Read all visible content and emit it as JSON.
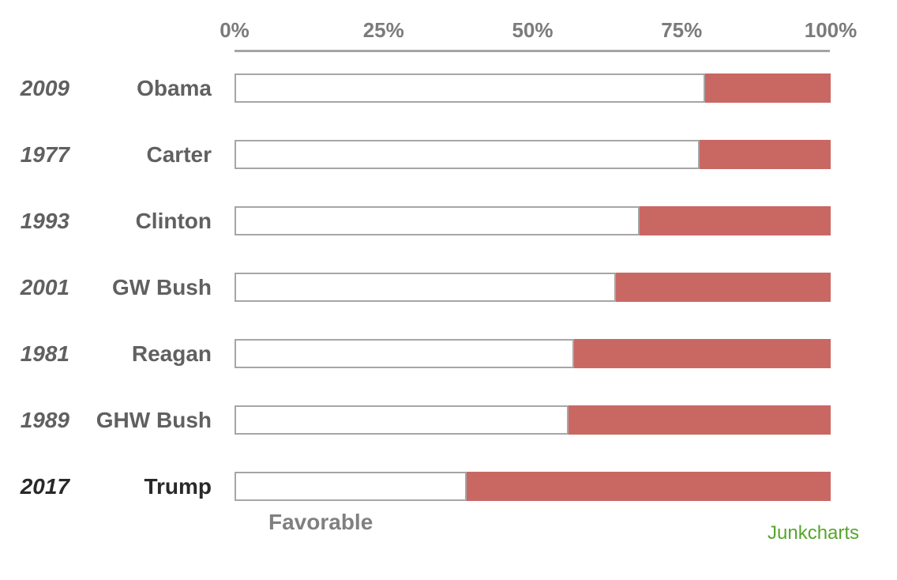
{
  "chart_data": {
    "type": "bar",
    "orientation": "horizontal",
    "title": "",
    "xlabel": "",
    "ylabel": "",
    "x_ticks": [
      "0%",
      "25%",
      "50%",
      "75%",
      "100%"
    ],
    "x_range": [
      0,
      100
    ],
    "series_label": "Favorable",
    "rows": [
      {
        "year": "2009",
        "president": "Obama",
        "favorable": 79,
        "remainder": 21,
        "highlighted": false
      },
      {
        "year": "1977",
        "president": "Carter",
        "favorable": 78,
        "remainder": 22,
        "highlighted": false
      },
      {
        "year": "1993",
        "president": "Clinton",
        "favorable": 68,
        "remainder": 32,
        "highlighted": false
      },
      {
        "year": "2001",
        "president": "GW Bush",
        "favorable": 64,
        "remainder": 36,
        "highlighted": false
      },
      {
        "year": "1981",
        "president": "Reagan",
        "favorable": 57,
        "remainder": 43,
        "highlighted": false
      },
      {
        "year": "1989",
        "president": "GHW Bush",
        "favorable": 56,
        "remainder": 44,
        "highlighted": false
      },
      {
        "year": "2017",
        "president": "Trump",
        "favorable": 39,
        "remainder": 61,
        "highlighted": true
      }
    ],
    "legend": [],
    "grid": false,
    "colors": {
      "favorable_fill": "#ffffff",
      "remainder_fill": "#c96863",
      "bar_border": "#a6a6a6",
      "axis_text": "#7b7b7b",
      "label_text": "#606060",
      "highlight_text": "#292929",
      "credit_text": "#58a52d"
    }
  },
  "footer": {
    "credit": "Junkcharts"
  }
}
